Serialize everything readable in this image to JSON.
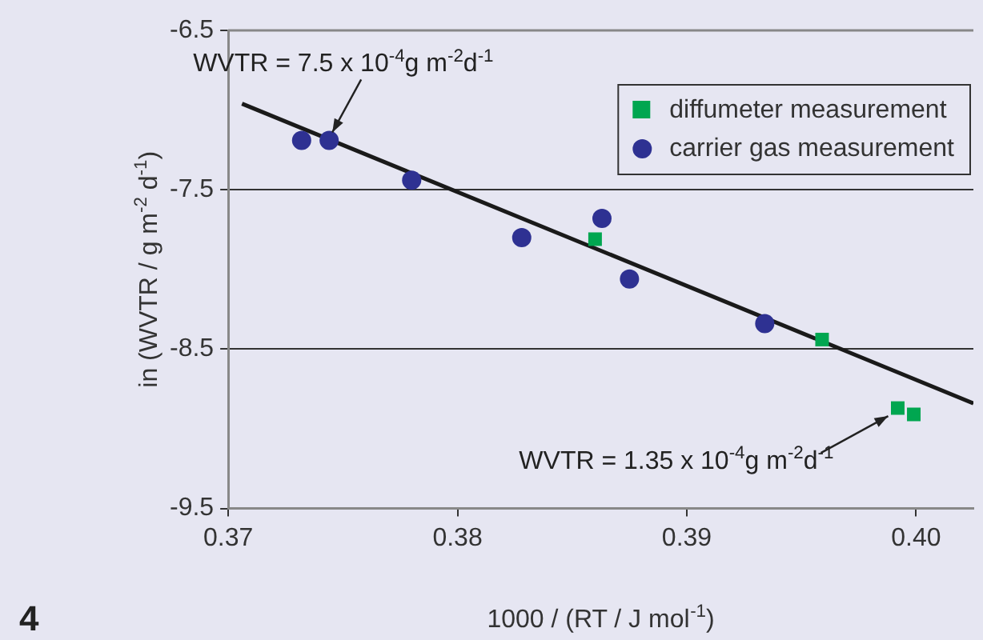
{
  "chart_data": {
    "type": "scatter",
    "xlabel": "1000 / (RT / J mol$^{-1}$)",
    "ylabel": "in (WVTR / g m$^{-2}$ d$^{-1}$)",
    "xlim": [
      0.37,
      0.4025
    ],
    "xticks": [
      0.37,
      0.38,
      0.39,
      {
        "value": 0.4,
        "label": "0.40"
      }
    ],
    "ylim": [
      -9.5,
      -6.5
    ],
    "yticks": [
      -9.5,
      -8.5,
      -7.5,
      -6.5
    ],
    "grid": "y",
    "legend": "top right",
    "series": [
      {
        "name": "diffumeter measurement",
        "color": "#00a650",
        "marker": "square",
        "x": [
          0.386,
          0.3959,
          0.3992,
          0.3999
        ],
        "values": [
          -7.81,
          -8.44,
          -8.87,
          -8.91
        ]
      },
      {
        "name": "carrier gas measurement",
        "color": "#2e3192",
        "marker": "circle",
        "x": [
          0.3732,
          0.3744,
          0.378,
          0.3828,
          0.3863,
          0.3875,
          0.3934
        ],
        "values": [
          -7.19,
          -7.19,
          -7.44,
          -7.8,
          -7.68,
          -8.06,
          -8.34
        ]
      },
      {
        "type": "line",
        "color": "#1a1a1a",
        "marker": "none",
        "x": [
          0.3706,
          0.4025
        ],
        "values": [
          -6.96,
          -8.84
        ]
      }
    ],
    "annotations": [
      {
        "text": "WVTR = 7.5 x 10$^{-4}$g m$^{-2}$d$^{-1}$",
        "x": 0.3744,
        "y": -7.19
      },
      {
        "text": "WVTR = 1.35 x 10$^{-4}$g m$^{-2}$d$^{-1}$",
        "x": 0.3992,
        "y": -8.87
      },
      "4"
    ]
  }
}
